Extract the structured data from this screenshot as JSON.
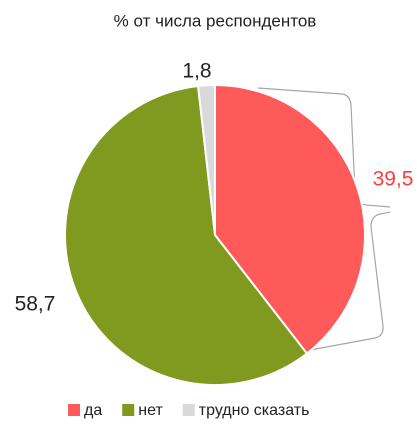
{
  "chart_data": {
    "type": "pie",
    "title": "% от числа респондентов",
    "categories": [
      "да",
      "нет",
      "трудно сказать"
    ],
    "values": [
      39.5,
      58.7,
      1.8
    ],
    "value_labels": [
      "39,5",
      "58,7",
      "1,8"
    ],
    "colors": [
      "#ff5a5a",
      "#7f9a1e",
      "#d9d9d9"
    ],
    "legend": "bottom"
  }
}
